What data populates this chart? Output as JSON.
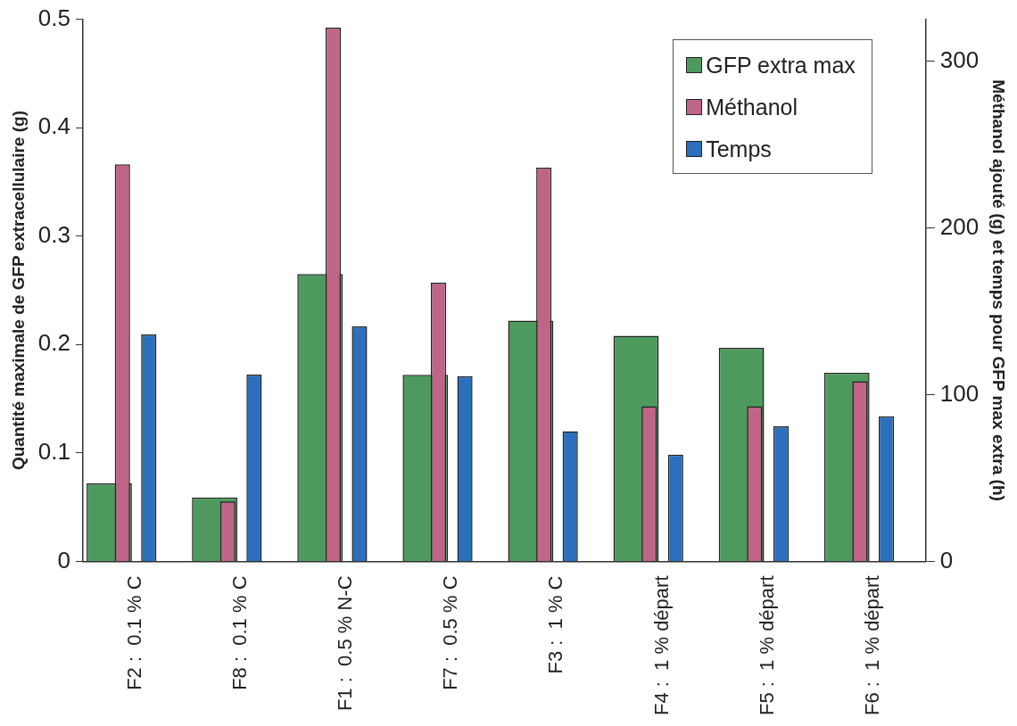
{
  "chart_data": {
    "type": "bar",
    "ylabel": "Quantité maximale de GFP extracellulaire (g)",
    "y2label": "Méthanol ajouté (g) et temps pour GFP max extra (h)",
    "categories": [
      "F2 :  0.1 % C",
      "F8 :  0.1 % C",
      "F1 :  0.5 % N-C",
      "F7 :  0.5 % C",
      "F3 :  1 % C",
      "F4 :  1 % départ",
      "F5 :  1 % départ",
      "F6 :  1 % départ"
    ],
    "series": [
      {
        "name": "GFP extra max",
        "color": "#4e9a5e",
        "values": [
          0.072,
          0.059,
          0.265,
          0.172,
          0.222,
          0.208,
          0.197,
          0.174
        ]
      },
      {
        "name": "Méthanol",
        "color": "#c06488",
        "axis": "y2",
        "values": [
          238,
          36,
          320,
          167,
          236,
          93,
          93,
          108
        ]
      },
      {
        "name": "Temps",
        "color": "#2c6fbd",
        "axis": "y2",
        "values": [
          136,
          112,
          141,
          111,
          78,
          64,
          81,
          87
        ]
      }
    ],
    "ylim": [
      0,
      0.5
    ],
    "yticks": [
      0,
      0.1,
      0.2,
      0.3,
      0.4,
      0.5
    ],
    "y2lim": [
      0,
      325
    ],
    "y2ticks": [
      0,
      100,
      200,
      300
    ],
    "grid": false,
    "legend": "top right"
  }
}
